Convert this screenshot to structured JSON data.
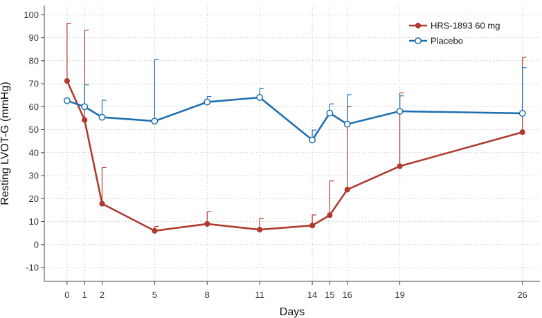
{
  "chart_data": {
    "type": "line",
    "xlabel": "Days",
    "ylabel": "Resting LVOT-G (mmHg)",
    "x": [
      0,
      1,
      2,
      5,
      8,
      11,
      14,
      15,
      16,
      19,
      26
    ],
    "x_ticks": [
      0,
      1,
      2,
      5,
      8,
      11,
      14,
      15,
      16,
      19,
      26
    ],
    "y_ticks": [
      -10,
      0,
      10,
      20,
      30,
      40,
      50,
      60,
      70,
      80,
      90,
      100
    ],
    "xlim": [
      -1.3,
      27
    ],
    "ylim": [
      -16,
      104
    ],
    "grid": true,
    "legend_position": "top-right",
    "series": [
      {
        "name": "HRS-1893 60 mg",
        "color": "#b03a2e",
        "marker": "filled-circle",
        "values": [
          71.2,
          54.2,
          17.8,
          6.0,
          9.0,
          6.5,
          8.3,
          12.8,
          23.9,
          34.1,
          48.9
        ],
        "error_upper": [
          96.3,
          93.3,
          33.5,
          7.9,
          14.3,
          11.3,
          12.9,
          27.7,
          60.0,
          66.0,
          81.5
        ]
      },
      {
        "name": "Placebo",
        "color": "#1f6fb0",
        "marker": "open-circle",
        "values": [
          62.6,
          60.0,
          55.4,
          53.7,
          62.0,
          64.0,
          45.5,
          57.2,
          52.4,
          58.0,
          57.1
        ],
        "error_upper": [
          62.6,
          69.5,
          62.8,
          80.5,
          64.4,
          68.0,
          49.8,
          61.2,
          65.2,
          64.7,
          77.0
        ]
      }
    ]
  }
}
